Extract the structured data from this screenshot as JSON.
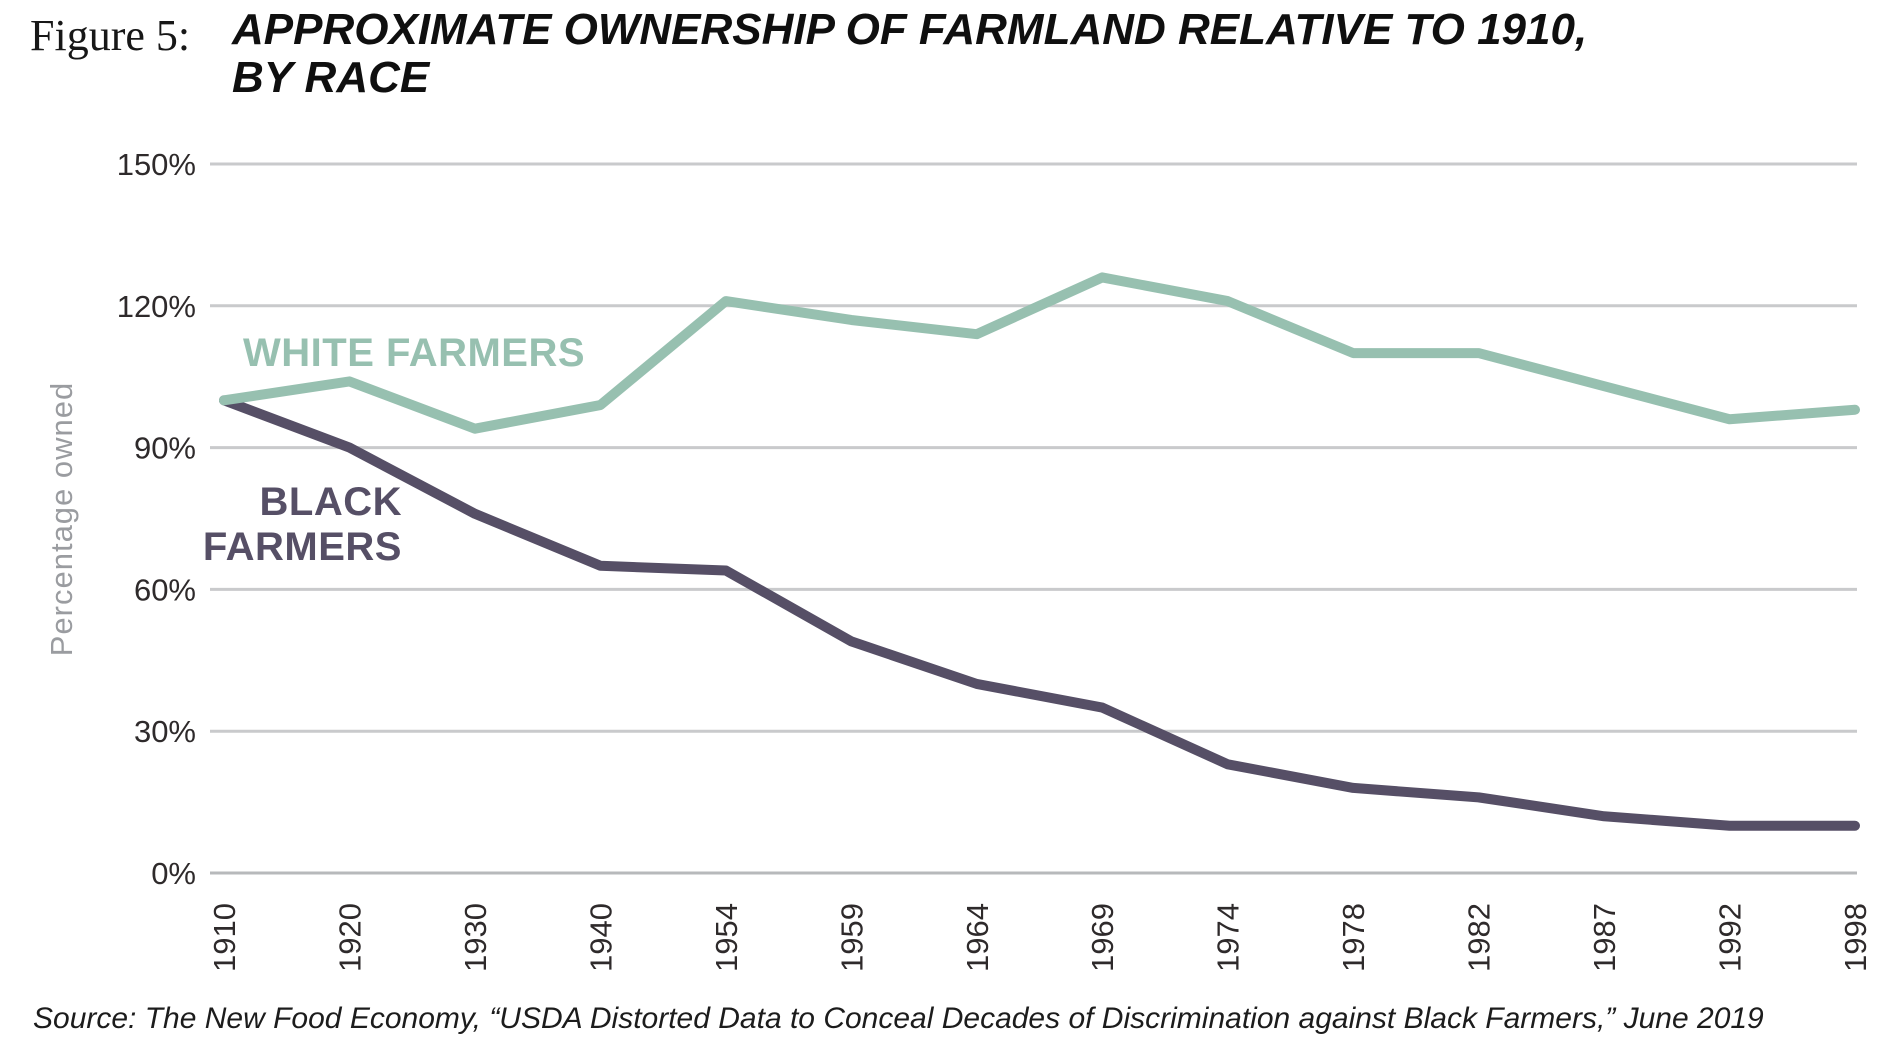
{
  "figure": {
    "label": "Figure 5:",
    "title_lines": [
      "APPROXIMATE OWNERSHIP OF FARMLAND RELATIVE TO 1910,",
      "BY RACE"
    ]
  },
  "source": "Source: The New Food Economy, “USDA Distorted Data to Conceal Decades of Discrimination against Black Farmers,” June 2019",
  "chart_data": {
    "type": "line",
    "title": "Approximate ownership of farmland relative to 1910, by race",
    "ylabel": "Percentage owned",
    "xlabel": "",
    "categories": [
      "1910",
      "1920",
      "1930",
      "1940",
      "1954",
      "1959",
      "1964",
      "1969",
      "1974",
      "1978",
      "1982",
      "1987",
      "1992",
      "1998"
    ],
    "series": [
      {
        "name": "WHITE FARMERS",
        "label_lines": [
          "WHITE FARMERS"
        ],
        "color": "#97c0b0",
        "values": [
          100,
          104,
          94,
          99,
          121,
          117,
          114,
          126,
          121,
          110,
          110,
          103,
          96,
          98
        ]
      },
      {
        "name": "BLACK FARMERS",
        "label_lines": [
          "BLACK",
          "FARMERS"
        ],
        "color": "#564f66",
        "values": [
          100,
          90,
          76,
          65,
          64,
          49,
          40,
          35,
          23,
          18,
          16,
          12,
          10,
          10
        ]
      }
    ],
    "ylim": [
      0,
      150
    ],
    "y_tick_values": [
      0,
      30,
      60,
      90,
      120,
      150
    ],
    "y_ticks": [
      "0%",
      "30%",
      "60%",
      "90%",
      "120%",
      "150%"
    ],
    "grid": true,
    "legend_position": "inline-labels",
    "colors": {
      "grid": "#c9cacc",
      "axis": "#b7b9bb",
      "tick_text": "#2e2a2b",
      "axis_title_text": "#9a9ca0"
    }
  }
}
